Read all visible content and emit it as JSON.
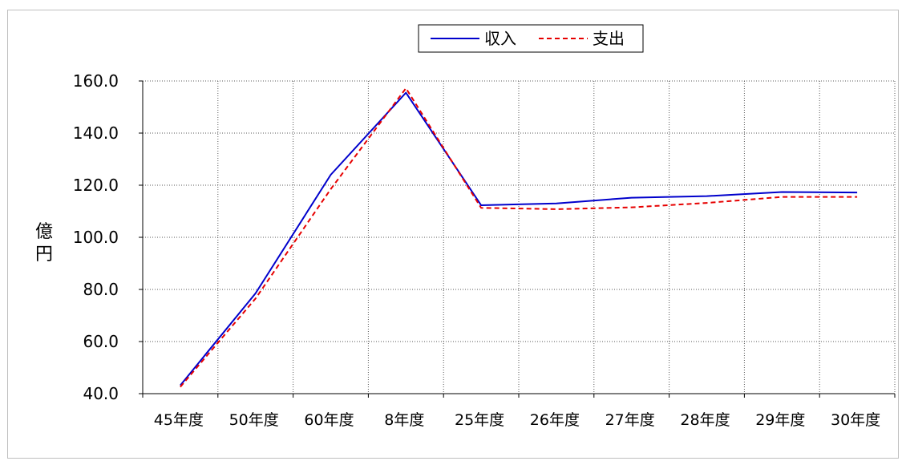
{
  "chart_data": {
    "type": "line",
    "title": "",
    "xlabel": "",
    "ylabel": "億円",
    "ylim": [
      40,
      160
    ],
    "y_ticks": [
      "40.0",
      "60.0",
      "80.0",
      "100.0",
      "120.0",
      "140.0",
      "160.0"
    ],
    "categories": [
      "45年度",
      "50年度",
      "60年度",
      "8年度",
      "25年度",
      "26年度",
      "27年度",
      "28年度",
      "29年度",
      "30年度"
    ],
    "grid": true,
    "legend_position": "top",
    "series": [
      {
        "name": "収入",
        "color": "#0000cc",
        "style": "solid",
        "values": [
          43.2,
          78.5,
          124.0,
          155.5,
          112.3,
          113.0,
          115.2,
          115.8,
          117.4,
          117.2
        ]
      },
      {
        "name": "支出",
        "color": "#e60000",
        "style": "dashed",
        "values": [
          42.6,
          76.5,
          118.5,
          157.2,
          111.3,
          110.8,
          111.5,
          113.2,
          115.5,
          115.5
        ]
      }
    ]
  }
}
